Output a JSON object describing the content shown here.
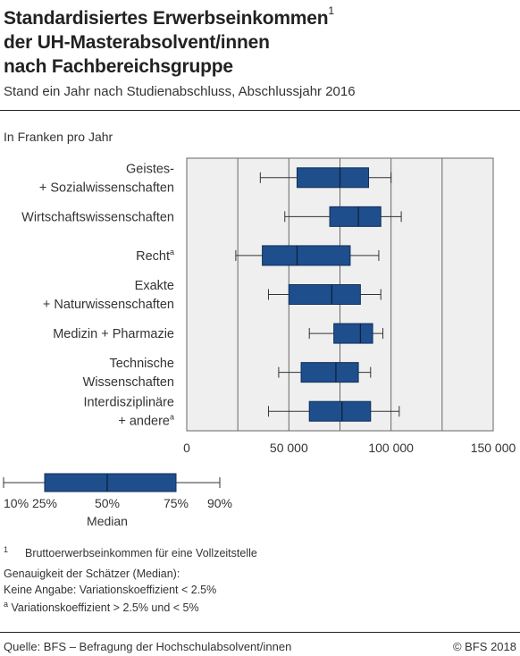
{
  "header": {
    "title_line1": "Standardisiertes Erwerbseinkommen",
    "title_sup": "1",
    "title_line2": "der UH-Masterabsolvent/innen",
    "title_line3": "nach Fachbereichsgruppe",
    "subtitle": "Stand ein Jahr nach Studienabschluss, Abschlussjahr 2016",
    "unit": "In Franken pro Jahr"
  },
  "chart_data": {
    "type": "boxplot",
    "orientation": "horizontal",
    "xlim": [
      0,
      150000
    ],
    "xticks": [
      0,
      50000,
      100000,
      150000
    ],
    "xtick_labels": [
      "0",
      "50 000",
      "100 000",
      "150 000"
    ],
    "grid": true,
    "color": "#1f4e8c",
    "categories": [
      {
        "lines": [
          "Geistes-",
          "+ Sozialwissenschaften"
        ],
        "sup": "",
        "p10": 36000,
        "p25": 54000,
        "median": 75000,
        "p75": 89000,
        "p90": 100000
      },
      {
        "lines": [
          "Wirtschaftswissenschaften"
        ],
        "sup": "",
        "p10": 48000,
        "p25": 70000,
        "median": 84000,
        "p75": 95000,
        "p90": 105000
      },
      {
        "lines": [
          "Recht"
        ],
        "sup": "a",
        "p10": 24000,
        "p25": 37000,
        "median": 54000,
        "p75": 80000,
        "p90": 94000
      },
      {
        "lines": [
          "Exakte",
          "+ Naturwissenschaften"
        ],
        "sup": "",
        "p10": 40000,
        "p25": 50000,
        "median": 71000,
        "p75": 85000,
        "p90": 95000
      },
      {
        "lines": [
          "Medizin + Pharmazie"
        ],
        "sup": "",
        "p10": 60000,
        "p25": 72000,
        "median": 85000,
        "p75": 91000,
        "p90": 96000
      },
      {
        "lines": [
          "Technische",
          "Wissenschaften"
        ],
        "sup": "",
        "p10": 45000,
        "p25": 56000,
        "median": 73000,
        "p75": 84000,
        "p90": 90000
      },
      {
        "lines": [
          "Interdisziplinäre",
          "+ andere"
        ],
        "sup": "a",
        "p10": 40000,
        "p25": 60000,
        "median": 76000,
        "p75": 90000,
        "p90": 104000
      }
    ]
  },
  "legend": {
    "labels": [
      "10%",
      "25%",
      "50%",
      "75%",
      "90%"
    ],
    "median_label": "Median"
  },
  "footnotes": {
    "fn1_mark": "1",
    "fn1_text": "Bruttoerwerbseinkommen für eine Vollzeitstelle",
    "accuracy_title": "Genauigkeit der Schätzer (Median):",
    "accuracy_none": "Keine Angabe: Variationskoeffizient < 2.5%",
    "accuracy_a_mark": "a",
    "accuracy_a_text": "Variationskoeffizient > 2.5% und < 5%"
  },
  "source": "Quelle: BFS – Befragung der Hochschulabsolvent/innen",
  "copyright": "© BFS 2018"
}
